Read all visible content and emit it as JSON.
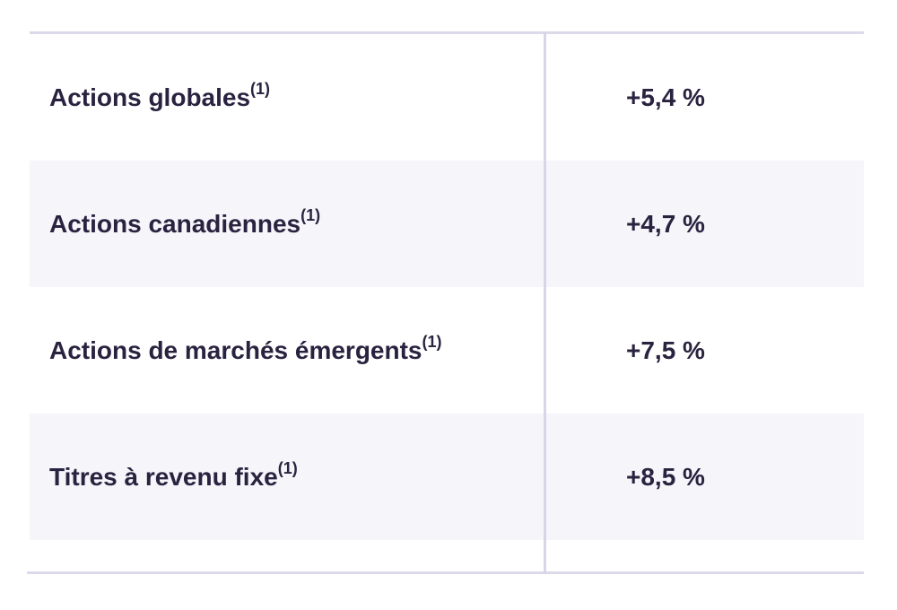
{
  "table": {
    "rows": [
      {
        "label": "Actions globales",
        "note": "(1)",
        "value": "+5,4 %"
      },
      {
        "label": "Actions canadiennes",
        "note": "(1)",
        "value": "+4,7 %"
      },
      {
        "label": "Actions de marchés émergents",
        "note": "(1)",
        "value": "+7,5 %"
      },
      {
        "label": "Titres à revenu fixe",
        "note": "(1)",
        "value": "+8,5 %"
      }
    ]
  },
  "colors": {
    "text": "#2a2340",
    "row_shade": "#f5f5fa",
    "rule": "#dcd9ea"
  }
}
